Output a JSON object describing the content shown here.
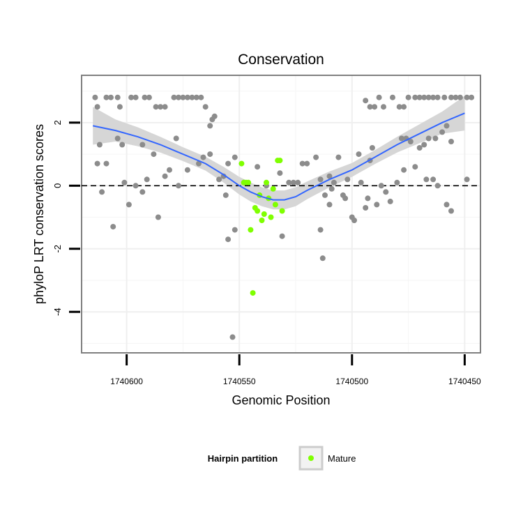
{
  "chart_data": {
    "type": "scatter",
    "title": "Conservation",
    "xlabel": "Genomic Position",
    "ylabel": "phyloP LRT conservation scores",
    "x_reversed": true,
    "xlim": [
      1740620,
      1740443
    ],
    "ylim": [
      -5.3,
      3.5
    ],
    "x_ticks": [
      1740600,
      1740550,
      1740500,
      1740450
    ],
    "x_tick_labels": [
      "1740600",
      "1740550",
      "1740500",
      "1740450"
    ],
    "y_ticks": [
      -4,
      -2,
      0,
      2
    ],
    "y_tick_labels": [
      "-4",
      "-2",
      "0",
      "2"
    ],
    "reference_line": {
      "y": 0,
      "style": "dashed"
    },
    "grid": true,
    "legend": {
      "title": "Hairpin partition",
      "position": "bottom",
      "entries": [
        {
          "label": "Mature",
          "color": "#7fff00"
        }
      ]
    },
    "colors": {
      "other": "#8c8c8c",
      "mature": "#7fff00",
      "smooth": "#3366ff",
      "band": "#d6d6d6"
    },
    "series": [
      {
        "values": [
          [
            1740614,
            2.8
          ],
          [
            1740613,
            2.5
          ],
          [
            1740609,
            2.8
          ],
          [
            1740607,
            2.8
          ],
          [
            1740604,
            2.8
          ],
          [
            1740603,
            2.5
          ],
          [
            1740598,
            2.8
          ],
          [
            1740596,
            2.8
          ],
          [
            1740592,
            2.8
          ],
          [
            1740590,
            2.8
          ],
          [
            1740587,
            2.5
          ],
          [
            1740585,
            2.5
          ],
          [
            1740583,
            2.5
          ],
          [
            1740579,
            2.8
          ],
          [
            1740577,
            2.8
          ],
          [
            1740575,
            2.8
          ],
          [
            1740573,
            2.8
          ],
          [
            1740571,
            2.8
          ],
          [
            1740569,
            2.8
          ],
          [
            1740567,
            2.8
          ],
          [
            1740565,
            2.5
          ],
          [
            1740562,
            2.1
          ],
          [
            1740561,
            2.2
          ],
          [
            1740563,
            1.9
          ],
          [
            1740612,
            1.3
          ],
          [
            1740609,
            0.7
          ],
          [
            1740604,
            1.5
          ],
          [
            1740602,
            1.3
          ],
          [
            1740593,
            1.3
          ],
          [
            1740588,
            1.0
          ],
          [
            1740583,
            0.3
          ],
          [
            1740581,
            0.5
          ],
          [
            1740578,
            1.5
          ],
          [
            1740573,
            0.5
          ],
          [
            1740568,
            0.7
          ],
          [
            1740566,
            0.9
          ],
          [
            1740555,
            0.7
          ],
          [
            1740552,
            0.9
          ],
          [
            1740548,
            0.1
          ],
          [
            1740613,
            0.7
          ],
          [
            1740611,
            -0.2
          ],
          [
            1740606,
            -1.3
          ],
          [
            1740601,
            0.1
          ],
          [
            1740599,
            -0.6
          ],
          [
            1740596,
            0.0
          ],
          [
            1740593,
            -0.2
          ],
          [
            1740591,
            0.2
          ],
          [
            1740586,
            -1.0
          ],
          [
            1740577,
            0.0
          ],
          [
            1740563,
            1.0
          ],
          [
            1740559,
            0.2
          ],
          [
            1740557,
            0.3
          ],
          [
            1740556,
            -0.3
          ],
          [
            1740555,
            -1.7
          ],
          [
            1740553,
            -4.8
          ],
          [
            1740552,
            -1.4
          ],
          [
            1740542,
            0.6
          ],
          [
            1740538,
            0.0
          ],
          [
            1740532,
            0.4
          ],
          [
            1740531,
            -1.6
          ],
          [
            1740528,
            0.1
          ],
          [
            1740526,
            0.1
          ],
          [
            1740524,
            0.1
          ],
          [
            1740522,
            0.7
          ],
          [
            1740520,
            0.7
          ],
          [
            1740516,
            0.9
          ],
          [
            1740514,
            0.2
          ],
          [
            1740512,
            -0.3
          ],
          [
            1740510,
            0.3
          ],
          [
            1740508,
            0.1
          ],
          [
            1740506,
            0.9
          ],
          [
            1740503,
            -0.4
          ],
          [
            1740500,
            -1.0
          ],
          [
            1740499,
            -1.1
          ],
          [
            1740496,
            0.1
          ],
          [
            1740494,
            -0.7
          ],
          [
            1740492,
            0.8
          ],
          [
            1740489,
            -0.6
          ],
          [
            1740487,
            0.0
          ],
          [
            1740485,
            -0.2
          ],
          [
            1740483,
            -0.5
          ],
          [
            1740514,
            -1.4
          ],
          [
            1740513,
            -2.3
          ],
          [
            1740510,
            -0.6
          ],
          [
            1740509,
            -0.1
          ],
          [
            1740504,
            -0.3
          ],
          [
            1740502,
            0.2
          ],
          [
            1740497,
            1.0
          ],
          [
            1740493,
            -0.4
          ],
          [
            1740491,
            1.2
          ],
          [
            1740494,
            2.7
          ],
          [
            1740492,
            2.5
          ],
          [
            1740490,
            2.5
          ],
          [
            1740488,
            2.8
          ],
          [
            1740486,
            2.5
          ],
          [
            1740482,
            2.8
          ],
          [
            1740479,
            2.5
          ],
          [
            1740477,
            2.5
          ],
          [
            1740475,
            2.8
          ],
          [
            1740472,
            2.8
          ],
          [
            1740470,
            2.8
          ],
          [
            1740468,
            2.8
          ],
          [
            1740466,
            2.8
          ],
          [
            1740464,
            2.8
          ],
          [
            1740462,
            2.8
          ],
          [
            1740459,
            2.8
          ],
          [
            1740456,
            2.8
          ],
          [
            1740454,
            2.8
          ],
          [
            1740452,
            2.8
          ],
          [
            1740449,
            2.8
          ],
          [
            1740447,
            2.8
          ],
          [
            1740478,
            1.5
          ],
          [
            1740476,
            1.5
          ],
          [
            1740474,
            1.4
          ],
          [
            1740470,
            1.2
          ],
          [
            1740468,
            1.3
          ],
          [
            1740466,
            1.5
          ],
          [
            1740463,
            1.5
          ],
          [
            1740460,
            1.7
          ],
          [
            1740458,
            1.9
          ],
          [
            1740456,
            1.4
          ],
          [
            1740480,
            0.1
          ],
          [
            1740477,
            0.5
          ],
          [
            1740472,
            0.6
          ],
          [
            1740467,
            0.2
          ],
          [
            1740464,
            0.2
          ],
          [
            1740462,
            0.0
          ],
          [
            1740458,
            -0.6
          ],
          [
            1740456,
            -0.8
          ],
          [
            1740449,
            0.2
          ]
        ]
      },
      {
        "name": "Mature",
        "values": [
          [
            1740549,
            0.7
          ],
          [
            1740548,
            0.1
          ],
          [
            1740547,
            0.1
          ],
          [
            1740546,
            0.1
          ],
          [
            1740545,
            -1.4
          ],
          [
            1740544,
            -3.4
          ],
          [
            1740543,
            -0.7
          ],
          [
            1740542,
            -0.8
          ],
          [
            1740541,
            -0.3
          ],
          [
            1740540,
            -1.1
          ],
          [
            1740539,
            -0.9
          ],
          [
            1740538,
            0.1
          ],
          [
            1740537,
            -0.4
          ],
          [
            1740536,
            -1.0
          ],
          [
            1740535,
            -0.1
          ],
          [
            1740534,
            -0.6
          ],
          [
            1740533,
            0.8
          ],
          [
            1740532,
            0.8
          ],
          [
            1740531,
            -0.8
          ]
        ]
      }
    ],
    "smooth": {
      "x": [
        1740615,
        1740605,
        1740595,
        1740585,
        1740575,
        1740565,
        1740557,
        1740550,
        1740545,
        1740540,
        1740535,
        1740530,
        1740525,
        1740520,
        1740510,
        1740500,
        1740490,
        1740480,
        1740470,
        1740460,
        1740450
      ],
      "y": [
        1.9,
        1.75,
        1.55,
        1.3,
        1.0,
        0.7,
        0.35,
        0.0,
        -0.2,
        -0.35,
        -0.45,
        -0.45,
        -0.35,
        -0.15,
        0.2,
        0.5,
        0.9,
        1.3,
        1.65,
        2.0,
        2.3
      ],
      "se": [
        0.6,
        0.35,
        0.3,
        0.25,
        0.22,
        0.22,
        0.25,
        0.28,
        0.3,
        0.3,
        0.3,
        0.3,
        0.3,
        0.28,
        0.25,
        0.22,
        0.22,
        0.25,
        0.3,
        0.35,
        0.55
      ]
    }
  }
}
